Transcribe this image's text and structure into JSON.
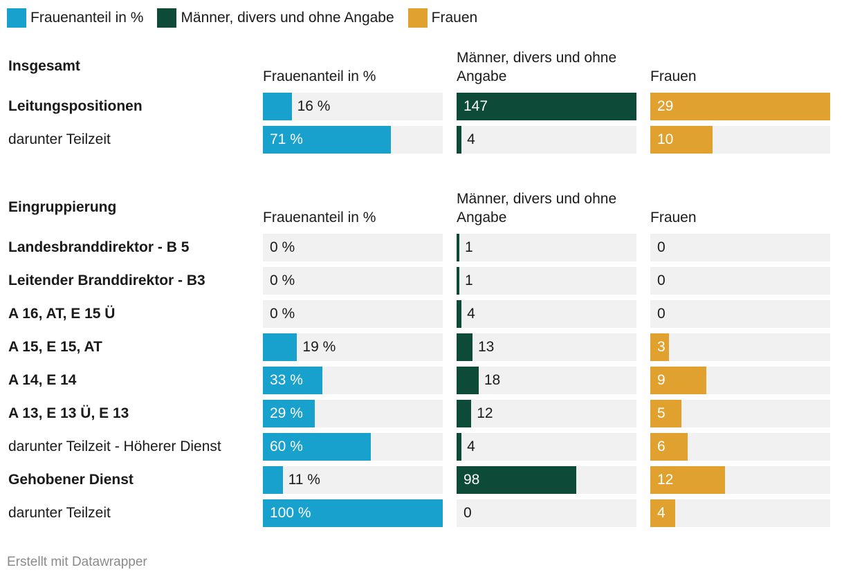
{
  "legend": [
    {
      "label": "Frauenanteil in %",
      "color": "#18a1cd"
    },
    {
      "label": "Männer, divers und ohne Angabe",
      "color": "#0e4a38"
    },
    {
      "label": "Frauen",
      "color": "#e1a12e"
    }
  ],
  "chart_data": {
    "type": "table",
    "colors": {
      "share": "#18a1cd",
      "men": "#0e4a38",
      "women": "#e1a12e"
    },
    "scales": {
      "share_max": 100,
      "men_max": 147,
      "women_max": 29
    },
    "sections": [
      {
        "heading": "Insgesamt",
        "columns": [
          "Frauenanteil in %",
          "Männer, divers und ohne Angabe",
          "Frauen"
        ],
        "rows": [
          {
            "label": "Leitungspositionen",
            "bold": true,
            "share": 16,
            "share_label": "16 %",
            "men": 147,
            "men_label": "147",
            "women": 29,
            "women_label": "29"
          },
          {
            "label": "darunter Teilzeit",
            "bold": false,
            "share": 71,
            "share_label": "71 %",
            "men": 4,
            "men_label": "4",
            "women": 10,
            "women_label": "10"
          }
        ]
      },
      {
        "heading": "Eingruppierung",
        "columns": [
          "Frauenanteil in %",
          "Männer, divers und ohne Angabe",
          "Frauen"
        ],
        "rows": [
          {
            "label": "Landesbranddirektor - B 5",
            "bold": true,
            "share": 0,
            "share_label": "0 %",
            "men": 1,
            "men_label": "1",
            "women": 0,
            "women_label": "0"
          },
          {
            "label": "Leitender Branddirektor - B3",
            "bold": true,
            "share": 0,
            "share_label": "0 %",
            "men": 1,
            "men_label": "1",
            "women": 0,
            "women_label": "0"
          },
          {
            "label": "A 16, AT, E 15 Ü",
            "bold": true,
            "share": 0,
            "share_label": "0 %",
            "men": 4,
            "men_label": "4",
            "women": 0,
            "women_label": "0"
          },
          {
            "label": "A 15, E 15, AT",
            "bold": true,
            "share": 19,
            "share_label": "19 %",
            "men": 13,
            "men_label": "13",
            "women": 3,
            "women_label": "3"
          },
          {
            "label": "A 14, E 14",
            "bold": true,
            "share": 33,
            "share_label": "33 %",
            "men": 18,
            "men_label": "18",
            "women": 9,
            "women_label": "9"
          },
          {
            "label": "A 13, E 13 Ü, E 13",
            "bold": true,
            "share": 29,
            "share_label": "29 %",
            "men": 12,
            "men_label": "12",
            "women": 5,
            "women_label": "5"
          },
          {
            "label": "darunter Teilzeit - Höherer Dienst",
            "bold": false,
            "share": 60,
            "share_label": "60 %",
            "men": 4,
            "men_label": "4",
            "women": 6,
            "women_label": "6"
          },
          {
            "label": "Gehobener Dienst",
            "bold": true,
            "share": 11,
            "share_label": "11 %",
            "men": 98,
            "men_label": "98",
            "women": 12,
            "women_label": "12"
          },
          {
            "label": "darunter Teilzeit",
            "bold": false,
            "share": 100,
            "share_label": "100 %",
            "men": 0,
            "men_label": "0",
            "women": 4,
            "women_label": "4"
          }
        ]
      }
    ]
  },
  "footer": {
    "credit": "Erstellt mit Datawrapper"
  }
}
